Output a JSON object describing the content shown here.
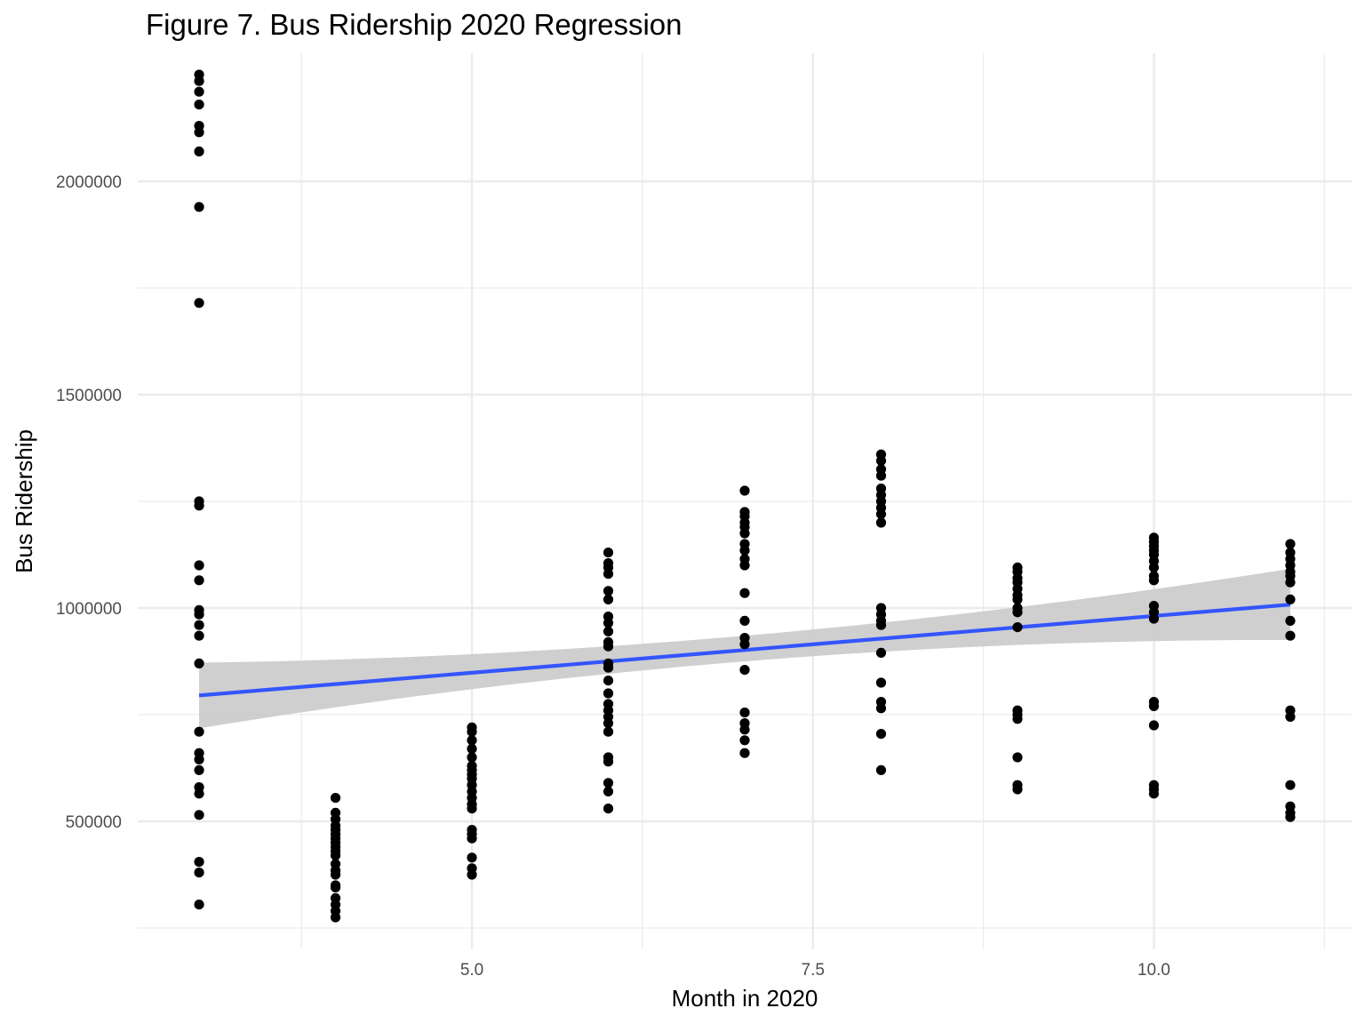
{
  "chart_data": {
    "type": "scatter",
    "title": "Figure 7. Bus Ridership 2020 Regression",
    "xlabel": "Month in 2020",
    "ylabel": "Bus Ridership",
    "xlim": [
      2.55,
      11.45
    ],
    "ylim": [
      200000,
      2300000
    ],
    "x_ticks": [
      5.0,
      7.5,
      10.0
    ],
    "x_tick_labels": [
      "5.0",
      "7.5",
      "10.0"
    ],
    "x_minor_ticks": [
      3.75,
      6.25,
      8.75,
      11.25
    ],
    "y_ticks": [
      500000,
      1000000,
      1500000,
      2000000
    ],
    "y_tick_labels": [
      "500000",
      "1000000",
      "1500000",
      "2000000"
    ],
    "y_minor_ticks": [
      250000,
      750000,
      1250000,
      1750000
    ],
    "grid": true,
    "legend": "none",
    "colors": {
      "points": "#000000",
      "regression_line": "#3355ff",
      "confidence_band": "#cccccc",
      "grid": "#ebebeb"
    },
    "series": [
      {
        "type": "scatter",
        "points": [
          [
            3,
            2250000
          ],
          [
            3,
            2235000
          ],
          [
            3,
            2210000
          ],
          [
            3,
            2180000
          ],
          [
            3,
            2130000
          ],
          [
            3,
            2115000
          ],
          [
            3,
            2070000
          ],
          [
            3,
            1940000
          ],
          [
            3,
            1715000
          ],
          [
            3,
            1250000
          ],
          [
            3,
            1240000
          ],
          [
            3,
            1100000
          ],
          [
            3,
            1065000
          ],
          [
            3,
            995000
          ],
          [
            3,
            985000
          ],
          [
            3,
            960000
          ],
          [
            3,
            935000
          ],
          [
            3,
            870000
          ],
          [
            3,
            710000
          ],
          [
            3,
            660000
          ],
          [
            3,
            645000
          ],
          [
            3,
            620000
          ],
          [
            3,
            580000
          ],
          [
            3,
            565000
          ],
          [
            3,
            515000
          ],
          [
            3,
            405000
          ],
          [
            3,
            380000
          ],
          [
            3,
            305000
          ],
          [
            4,
            555000
          ],
          [
            4,
            520000
          ],
          [
            4,
            505000
          ],
          [
            4,
            490000
          ],
          [
            4,
            480000
          ],
          [
            4,
            470000
          ],
          [
            4,
            460000
          ],
          [
            4,
            450000
          ],
          [
            4,
            440000
          ],
          [
            4,
            430000
          ],
          [
            4,
            420000
          ],
          [
            4,
            400000
          ],
          [
            4,
            385000
          ],
          [
            4,
            375000
          ],
          [
            4,
            350000
          ],
          [
            4,
            345000
          ],
          [
            4,
            320000
          ],
          [
            4,
            305000
          ],
          [
            4,
            290000
          ],
          [
            4,
            275000
          ],
          [
            5,
            720000
          ],
          [
            5,
            710000
          ],
          [
            5,
            690000
          ],
          [
            5,
            670000
          ],
          [
            5,
            650000
          ],
          [
            5,
            630000
          ],
          [
            5,
            620000
          ],
          [
            5,
            610000
          ],
          [
            5,
            600000
          ],
          [
            5,
            585000
          ],
          [
            5,
            570000
          ],
          [
            5,
            555000
          ],
          [
            5,
            540000
          ],
          [
            5,
            530000
          ],
          [
            5,
            480000
          ],
          [
            5,
            470000
          ],
          [
            5,
            460000
          ],
          [
            5,
            415000
          ],
          [
            5,
            390000
          ],
          [
            5,
            375000
          ],
          [
            6,
            1130000
          ],
          [
            6,
            1105000
          ],
          [
            6,
            1095000
          ],
          [
            6,
            1080000
          ],
          [
            6,
            1040000
          ],
          [
            6,
            1020000
          ],
          [
            6,
            980000
          ],
          [
            6,
            965000
          ],
          [
            6,
            945000
          ],
          [
            6,
            920000
          ],
          [
            6,
            910000
          ],
          [
            6,
            870000
          ],
          [
            6,
            860000
          ],
          [
            6,
            830000
          ],
          [
            6,
            800000
          ],
          [
            6,
            775000
          ],
          [
            6,
            760000
          ],
          [
            6,
            745000
          ],
          [
            6,
            730000
          ],
          [
            6,
            710000
          ],
          [
            6,
            650000
          ],
          [
            6,
            640000
          ],
          [
            6,
            590000
          ],
          [
            6,
            570000
          ],
          [
            6,
            530000
          ],
          [
            7,
            1275000
          ],
          [
            7,
            1225000
          ],
          [
            7,
            1215000
          ],
          [
            7,
            1200000
          ],
          [
            7,
            1190000
          ],
          [
            7,
            1175000
          ],
          [
            7,
            1150000
          ],
          [
            7,
            1135000
          ],
          [
            7,
            1115000
          ],
          [
            7,
            1100000
          ],
          [
            7,
            1035000
          ],
          [
            7,
            970000
          ],
          [
            7,
            930000
          ],
          [
            7,
            915000
          ],
          [
            7,
            855000
          ],
          [
            7,
            755000
          ],
          [
            7,
            730000
          ],
          [
            7,
            715000
          ],
          [
            7,
            690000
          ],
          [
            7,
            660000
          ],
          [
            8,
            1360000
          ],
          [
            8,
            1345000
          ],
          [
            8,
            1325000
          ],
          [
            8,
            1310000
          ],
          [
            8,
            1280000
          ],
          [
            8,
            1265000
          ],
          [
            8,
            1250000
          ],
          [
            8,
            1235000
          ],
          [
            8,
            1220000
          ],
          [
            8,
            1200000
          ],
          [
            8,
            1000000
          ],
          [
            8,
            985000
          ],
          [
            8,
            970000
          ],
          [
            8,
            960000
          ],
          [
            8,
            895000
          ],
          [
            8,
            825000
          ],
          [
            8,
            780000
          ],
          [
            8,
            765000
          ],
          [
            8,
            705000
          ],
          [
            8,
            620000
          ],
          [
            9,
            1095000
          ],
          [
            9,
            1085000
          ],
          [
            9,
            1070000
          ],
          [
            9,
            1060000
          ],
          [
            9,
            1045000
          ],
          [
            9,
            1030000
          ],
          [
            9,
            1020000
          ],
          [
            9,
            1000000
          ],
          [
            9,
            990000
          ],
          [
            9,
            955000
          ],
          [
            9,
            760000
          ],
          [
            9,
            750000
          ],
          [
            9,
            740000
          ],
          [
            9,
            650000
          ],
          [
            9,
            585000
          ],
          [
            9,
            575000
          ],
          [
            10,
            1165000
          ],
          [
            10,
            1155000
          ],
          [
            10,
            1145000
          ],
          [
            10,
            1135000
          ],
          [
            10,
            1125000
          ],
          [
            10,
            1110000
          ],
          [
            10,
            1095000
          ],
          [
            10,
            1075000
          ],
          [
            10,
            1065000
          ],
          [
            10,
            1005000
          ],
          [
            10,
            990000
          ],
          [
            10,
            975000
          ],
          [
            10,
            780000
          ],
          [
            10,
            770000
          ],
          [
            10,
            725000
          ],
          [
            10,
            585000
          ],
          [
            10,
            575000
          ],
          [
            10,
            565000
          ],
          [
            11,
            1150000
          ],
          [
            11,
            1130000
          ],
          [
            11,
            1115000
          ],
          [
            11,
            1100000
          ],
          [
            11,
            1085000
          ],
          [
            11,
            1075000
          ],
          [
            11,
            1060000
          ],
          [
            11,
            1020000
          ],
          [
            11,
            970000
          ],
          [
            11,
            935000
          ],
          [
            11,
            760000
          ],
          [
            11,
            745000
          ],
          [
            11,
            585000
          ],
          [
            11,
            535000
          ],
          [
            11,
            520000
          ],
          [
            11,
            510000
          ]
        ]
      },
      {
        "type": "line",
        "method": "linear regression",
        "x": [
          3,
          11
        ],
        "y": [
          795000,
          1008000
        ],
        "ci_lower": [
          718000,
          925000
        ],
        "ci_upper": [
          872000,
          1092000
        ],
        "ci_mid": {
          "x": 7,
          "lower": 875000,
          "upper": 935000
        }
      }
    ]
  }
}
